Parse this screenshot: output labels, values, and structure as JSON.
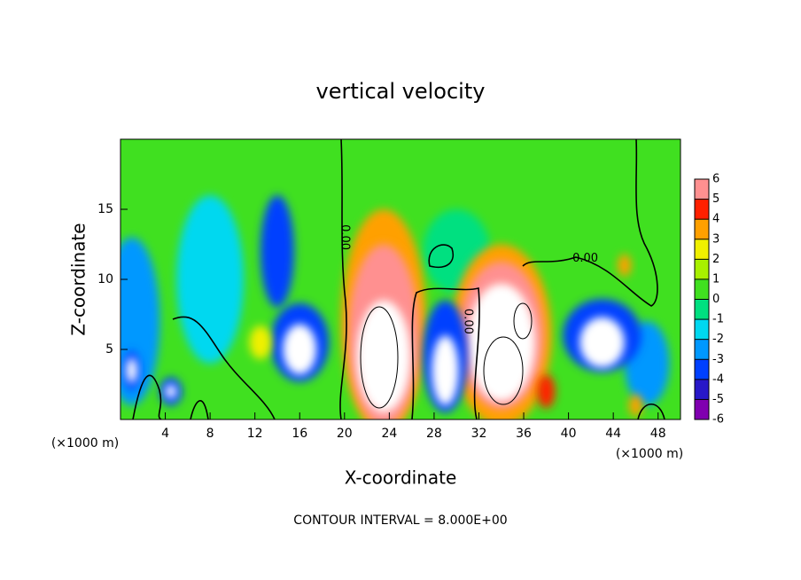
{
  "chart_data": {
    "type": "contour",
    "title": "vertical velocity",
    "xlabel": "X-coordinate",
    "ylabel": "Z-coordinate",
    "x_unit": "(×1000 m)",
    "x_unit_right": "(×1000 m)",
    "footnote": "CONTOUR INTERVAL = 8.000E+00",
    "xlim": [
      0,
      50
    ],
    "xticks": [
      4,
      8,
      12,
      16,
      20,
      24,
      28,
      32,
      36,
      40,
      44,
      48
    ],
    "ylim": [
      0,
      20
    ],
    "yticks": [
      5,
      10,
      15
    ],
    "background_value": 0.5,
    "levels": [
      -6,
      -5,
      -4,
      -3,
      -2,
      -1,
      0,
      1,
      2,
      3,
      4,
      5,
      6
    ],
    "colors": [
      "#8000b0",
      "#2818c8",
      "#0040ff",
      "#0098ff",
      "#00d8f0",
      "#00e080",
      "#40e020",
      "#a8f000",
      "#f0f000",
      "#ffa000",
      "#ff2000",
      "#ff9090"
    ],
    "out_of_range_color": "#ffffff",
    "features": [
      {
        "x": 8,
        "z": 10,
        "rx": 3,
        "rz": 6,
        "value": -1.5
      },
      {
        "x": 1,
        "z": 7,
        "rx": 2.5,
        "rz": 6,
        "value": -3
      },
      {
        "x": 30,
        "z": 12,
        "rx": 3,
        "rz": 3,
        "value": -0.5
      },
      {
        "x": 14,
        "z": 12,
        "rx": 1.5,
        "rz": 4,
        "value": -4
      },
      {
        "x": 47,
        "z": 4,
        "rx": 2,
        "rz": 3,
        "value": -3
      },
      {
        "x": 23.5,
        "z": 7,
        "rx": 3.8,
        "rz": 8,
        "value": 3
      },
      {
        "x": 23.5,
        "z": 6,
        "rx": 3.2,
        "rz": 6.5,
        "value": 5
      },
      {
        "x": 23.5,
        "z": 4.5,
        "rx": 2.4,
        "rz": 4,
        "value": 8
      },
      {
        "x": 34,
        "z": 6,
        "rx": 4.5,
        "rz": 6.5,
        "value": 3
      },
      {
        "x": 34,
        "z": 6,
        "rx": 3.8,
        "rz": 5.3,
        "value": 5
      },
      {
        "x": 34,
        "z": 5.5,
        "rx": 3,
        "rz": 4.2,
        "value": 8
      },
      {
        "x": 29,
        "z": 4.5,
        "rx": 2,
        "rz": 4,
        "value": -4
      },
      {
        "x": 29,
        "z": 3.5,
        "rx": 1.2,
        "rz": 2.5,
        "value": -8
      },
      {
        "x": 16,
        "z": 5.5,
        "rx": 2.6,
        "rz": 2.8,
        "value": -4
      },
      {
        "x": 16,
        "z": 5,
        "rx": 1.5,
        "rz": 1.8,
        "value": -8
      },
      {
        "x": 43,
        "z": 6,
        "rx": 3.5,
        "rz": 2.6,
        "value": -4
      },
      {
        "x": 43,
        "z": 5.5,
        "rx": 2,
        "rz": 1.8,
        "value": -8
      },
      {
        "x": 1,
        "z": 3.5,
        "rx": 0.8,
        "rz": 1.4,
        "value": -4
      },
      {
        "x": 1,
        "z": 3.5,
        "rx": 0.5,
        "rz": 0.9,
        "value": -8
      },
      {
        "x": 4.5,
        "z": 2,
        "rx": 1,
        "rz": 1,
        "value": -4
      },
      {
        "x": 4.5,
        "z": 2,
        "rx": 0.5,
        "rz": 0.5,
        "value": -8
      },
      {
        "x": 12.5,
        "z": 5.5,
        "rx": 1,
        "rz": 1.2,
        "value": 2
      },
      {
        "x": 38,
        "z": 2,
        "rx": 0.8,
        "rz": 1.2,
        "value": 4
      },
      {
        "x": 46,
        "z": 1,
        "rx": 0.6,
        "rz": 0.8,
        "value": 3
      },
      {
        "x": 45,
        "z": 11,
        "rx": 0.6,
        "rz": 0.8,
        "value": 3
      }
    ],
    "contour_labels": [
      {
        "value": 0,
        "label": "0.00",
        "x": 20,
        "z": 13,
        "rotate": true
      },
      {
        "value": 0,
        "label": "0.00",
        "x": 31,
        "z": 7,
        "rotate": true
      },
      {
        "value": 0,
        "label": "0.00",
        "x": 41.5,
        "z": 11.5,
        "rotate": false
      }
    ]
  }
}
